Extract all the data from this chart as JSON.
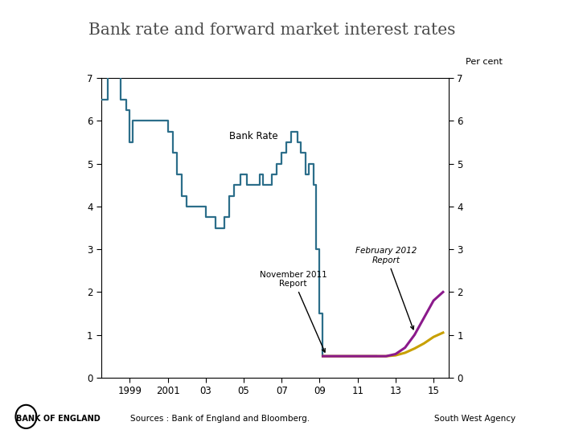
{
  "title": "Bank rate and forward market interest rates",
  "title_fontsize": 14.5,
  "title_color": "#4a4a4a",
  "background_color": "#ffffff",
  "ylim": [
    0,
    7
  ],
  "yticks": [
    0,
    1,
    2,
    3,
    4,
    5,
    6,
    7
  ],
  "xlim": [
    1997.5,
    2015.8
  ],
  "xticks": [
    1999,
    2001,
    2003,
    2005,
    2007,
    2009,
    2011,
    2013,
    2015
  ],
  "xticklabels": [
    "1999",
    "2001",
    "03",
    "05",
    "07",
    "09",
    "11",
    "13",
    "15"
  ],
  "bank_rate_color": "#2c6e8a",
  "nov2011_color": "#c8a000",
  "feb2012_color": "#8b1a8b",
  "sources_text": "Sources : Bank of England and Bloomberg.",
  "south_west_text": "South West Agency",
  "bank_rate_label": "Bank Rate",
  "bank_rate_x": [
    1997.5,
    1997.83,
    1998.0,
    1998.17,
    1998.5,
    1998.83,
    1999.0,
    1999.17,
    1999.5,
    1999.83,
    2000.0,
    2000.17,
    2000.5,
    2000.83,
    2001.0,
    2001.25,
    2001.5,
    2001.75,
    2002.0,
    2002.5,
    2003.0,
    2003.5,
    2004.0,
    2004.25,
    2004.5,
    2004.83,
    2005.0,
    2005.17,
    2005.5,
    2005.83,
    2006.0,
    2006.25,
    2006.5,
    2006.75,
    2007.0,
    2007.25,
    2007.5,
    2007.67,
    2007.83,
    2008.0,
    2008.25,
    2008.42,
    2008.67,
    2008.83,
    2009.0,
    2009.17,
    2009.25,
    2012.0
  ],
  "bank_rate_y": [
    6.5,
    7.5,
    7.5,
    7.25,
    6.5,
    6.25,
    5.5,
    6.0,
    6.0,
    6.0,
    6.0,
    6.0,
    6.0,
    6.0,
    5.75,
    5.25,
    4.75,
    4.25,
    4.0,
    4.0,
    3.75,
    3.5,
    3.75,
    4.25,
    4.5,
    4.75,
    4.75,
    4.5,
    4.5,
    4.75,
    4.5,
    4.5,
    4.75,
    5.0,
    5.25,
    5.5,
    5.75,
    5.75,
    5.5,
    5.25,
    4.75,
    5.0,
    4.5,
    3.0,
    1.5,
    0.5,
    0.5,
    0.5
  ],
  "nov2011_x": [
    2009.17,
    2009.5,
    2010.0,
    2010.5,
    2011.0,
    2011.5,
    2012.0,
    2012.5,
    2013.0,
    2013.5,
    2014.0,
    2014.5,
    2015.0,
    2015.5
  ],
  "nov2011_y": [
    0.5,
    0.5,
    0.5,
    0.5,
    0.5,
    0.5,
    0.5,
    0.5,
    0.52,
    0.58,
    0.68,
    0.8,
    0.95,
    1.05
  ],
  "feb2012_x": [
    2009.17,
    2009.5,
    2010.0,
    2010.5,
    2011.0,
    2011.5,
    2012.0,
    2012.5,
    2013.0,
    2013.5,
    2014.0,
    2014.5,
    2015.0,
    2015.5
  ],
  "feb2012_y": [
    0.5,
    0.5,
    0.5,
    0.5,
    0.5,
    0.5,
    0.5,
    0.5,
    0.55,
    0.7,
    1.0,
    1.4,
    1.8,
    2.0
  ]
}
